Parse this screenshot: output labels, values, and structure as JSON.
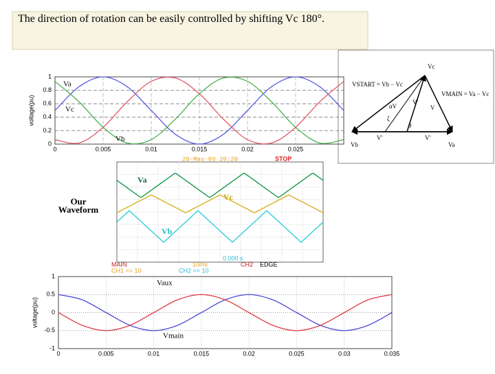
{
  "caption": "The direction of rotation can be easily controlled by  shifting Vc 180°.",
  "side_label": [
    "Our",
    "Waveform"
  ],
  "chart_data": [
    {
      "type": "line",
      "ylabel": "voltage(pu)",
      "x": [
        0,
        0.0025,
        0.005,
        0.0075,
        0.01,
        0.0125,
        0.015,
        0.0175,
        0.02,
        0.0225,
        0.025,
        0.0275,
        0.03
      ],
      "series": [
        {
          "name": "Va",
          "color": "#5a5ae0",
          "values": [
            0.5,
            0.854,
            1,
            0.854,
            0.5,
            0.146,
            0,
            0.146,
            0.5,
            0.854,
            1,
            0.854,
            0.5
          ]
        },
        {
          "name": "Vc",
          "color": "#e05a6a",
          "values": [
            0.067,
            0.017,
            0.25,
            0.629,
            0.933,
            0.983,
            0.75,
            0.371,
            0.067,
            0.017,
            0.25,
            0.629,
            0.933
          ]
        },
        {
          "name": "Vb",
          "color": "#4caf50",
          "values": [
            0.933,
            0.629,
            0.25,
            0.017,
            0.067,
            0.371,
            0.75,
            0.983,
            0.933,
            0.629,
            0.25,
            0.017,
            0.067
          ]
        }
      ],
      "xlim": [
        0,
        0.03
      ],
      "ylim": [
        0,
        1
      ],
      "xticks": [
        0,
        0.005,
        0.01,
        0.015,
        0.02,
        0.025
      ],
      "yticks": [
        0,
        0.2,
        0.4,
        0.6,
        0.8,
        1
      ],
      "grid": true
    },
    {
      "type": "line",
      "ylabel": "voltage(pu)",
      "x": [
        0,
        0.0025,
        0.005,
        0.0075,
        0.01,
        0.0125,
        0.015,
        0.0175,
        0.02,
        0.0225,
        0.025,
        0.0275,
        0.03,
        0.0325,
        0.035
      ],
      "series": [
        {
          "name": "Vaux",
          "color": "#4a4ad8",
          "values": [
            0.5,
            0.354,
            0,
            -0.354,
            -0.5,
            -0.354,
            0,
            0.354,
            0.5,
            0.354,
            0,
            -0.354,
            -0.5,
            -0.354,
            0
          ]
        },
        {
          "name": "Vmain",
          "color": "#e03a4a",
          "values": [
            0,
            -0.354,
            -0.5,
            -0.354,
            0,
            0.354,
            0.5,
            0.354,
            0,
            -0.354,
            -0.5,
            -0.354,
            0,
            0.354,
            0.5
          ]
        }
      ],
      "xlim": [
        0,
        0.035
      ],
      "ylim": [
        -1,
        1
      ],
      "xticks": [
        0,
        0.005,
        0.01,
        0.015,
        0.02,
        0.025,
        0.03,
        0.035
      ],
      "yticks": [
        -1,
        -0.5,
        0,
        0.5,
        1
      ],
      "grid": true
    }
  ],
  "scope": {
    "time": "20-May-09 20:20",
    "status": "STOP",
    "traces": [
      "Va",
      "Vc",
      "Vb"
    ],
    "offset": "0.000 s",
    "footer": [
      "MAIN",
      "10ms",
      "CH2",
      "EDGE",
      "CH1 == 10",
      "CH2 == 10"
    ]
  },
  "phasor": {
    "labels": [
      "Vc",
      "VSTART = Vb − Vc",
      "VMAIN = Va − Vc",
      "αV",
      "V'",
      "V",
      "ζ",
      "θ",
      "Vb",
      "V'",
      "V'",
      "Va"
    ]
  }
}
